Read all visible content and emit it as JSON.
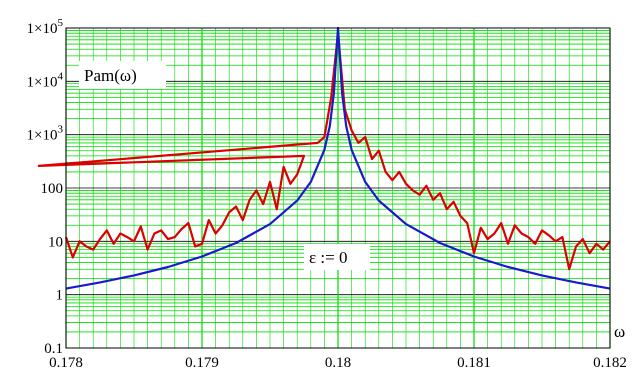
{
  "chart_data": {
    "type": "line",
    "xlabel": "ω",
    "ylabel": "Pam(ω)",
    "annotation": "ε := 0",
    "xlim": [
      0.178,
      0.182
    ],
    "ylim": [
      0.1,
      100000
    ],
    "yscale": "log",
    "grid": true,
    "x_tick_labels": [
      "0.178",
      "0.179",
      "0.18",
      "0.181",
      "0.182"
    ],
    "x_ticks": [
      0.178,
      0.179,
      0.18,
      0.181,
      0.182
    ],
    "y_ticks": [
      {
        "value": 0.1,
        "label": "0.1",
        "type": "plain"
      },
      {
        "value": 1,
        "label": "1",
        "type": "plain"
      },
      {
        "value": 10,
        "label": "10",
        "type": "plain"
      },
      {
        "value": 100,
        "label": "100",
        "type": "plain"
      },
      {
        "value": 1000,
        "label": "1×10",
        "exp": "3",
        "type": "sci"
      },
      {
        "value": 10000,
        "label": "1×10",
        "exp": "4",
        "type": "sci"
      },
      {
        "value": 100000,
        "label": "1×10",
        "exp": "5",
        "type": "sci"
      }
    ],
    "series": [
      {
        "color": "#dd0000",
        "x": [
          0.178,
          0.17805,
          0.1781,
          0.17815,
          0.1782,
          0.17825,
          0.1783,
          0.17835,
          0.1784,
          0.17845,
          0.1785,
          0.17855,
          0.1786,
          0.17865,
          0.1787,
          0.17875,
          0.1788,
          0.17885,
          0.1789,
          0.17895,
          0.179,
          0.17905,
          0.1791,
          0.17915,
          0.1792,
          0.17925,
          0.1793,
          0.17935,
          0.1794,
          0.17945,
          0.1795,
          0.17955,
          0.1796,
          0.17965,
          0.1797,
          0.17975,
          0.1778,
          0.17985,
          0.1799,
          0.17995,
          0.18,
          0.18005,
          0.1801,
          0.18015,
          0.1802,
          0.18025,
          0.1803,
          0.18035,
          0.1804,
          0.18045,
          0.1805,
          0.18055,
          0.1806,
          0.18065,
          0.1807,
          0.18075,
          0.1808,
          0.18085,
          0.1809,
          0.18095,
          0.181,
          0.18105,
          0.1811,
          0.18115,
          0.1812,
          0.18125,
          0.1813,
          0.18135,
          0.1814,
          0.18145,
          0.1815,
          0.18155,
          0.1816,
          0.18165,
          0.1817,
          0.18175,
          0.1818,
          0.18185,
          0.1819,
          0.18195,
          0.182
        ],
        "y": [
          12,
          5,
          10,
          8,
          7,
          11,
          16,
          9,
          14,
          12,
          10,
          19,
          7,
          14,
          16,
          11,
          12,
          17,
          22,
          8,
          9,
          25,
          14,
          20,
          35,
          45,
          25,
          60,
          90,
          50,
          130,
          40,
          250,
          120,
          180,
          400,
          260,
          700,
          900,
          5000,
          80000,
          3000,
          1200,
          700,
          900,
          350,
          500,
          200,
          140,
          200,
          120,
          90,
          75,
          110,
          60,
          80,
          40,
          55,
          30,
          22,
          6,
          18,
          11,
          14,
          22,
          9,
          20,
          14,
          12,
          9,
          16,
          13,
          10,
          12,
          3,
          8,
          11,
          6,
          9,
          7,
          10
        ]
      },
      {
        "color": "#1a1acc",
        "x": [
          0.178,
          0.17825,
          0.1785,
          0.17875,
          0.179,
          0.17925,
          0.1795,
          0.1797,
          0.1798,
          0.1799,
          0.17994,
          0.17997,
          0.17999,
          0.18,
          0.18001,
          0.18003,
          0.18006,
          0.1801,
          0.1802,
          0.1803,
          0.1805,
          0.18075,
          0.181,
          0.18125,
          0.1815,
          0.18175,
          0.182
        ],
        "y": [
          1.3,
          1.7,
          2.3,
          3.3,
          5.2,
          9.3,
          21,
          58,
          130,
          520,
          1450,
          6000,
          40000,
          300000,
          40000,
          6000,
          1450,
          520,
          130,
          58,
          21,
          9.3,
          5.2,
          3.3,
          2.3,
          1.7,
          1.3
        ]
      }
    ]
  }
}
